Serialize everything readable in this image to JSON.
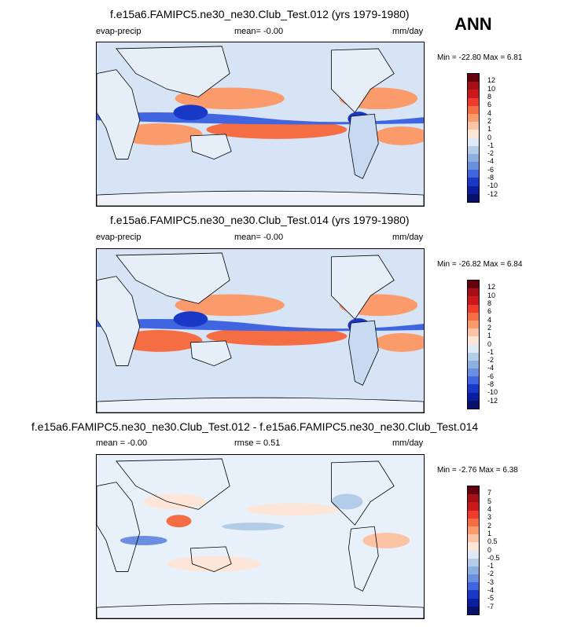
{
  "season": "ANN",
  "panels": [
    {
      "title": "f.e15a6.FAMIPC5.ne30_ne30.Club_Test.012 (yrs 1979-1980)",
      "left_label": "evap-precip",
      "center_label": "mean=  -0.00",
      "units": "mm/day",
      "minmax": "Min = -22.80 Max =   6.81",
      "colorbar_labels": [
        "12",
        "10",
        "8",
        "6",
        "4",
        "2",
        "1",
        "0",
        "-1",
        "-2",
        "-4",
        "-6",
        "-8",
        "-10",
        "-12"
      ]
    },
    {
      "title": "f.e15a6.FAMIPC5.ne30_ne30.Club_Test.014 (yrs 1979-1980)",
      "left_label": "evap-precip",
      "center_label": "mean=  -0.00",
      "units": "mm/day",
      "minmax": "Min = -26.82 Max =   6.84",
      "colorbar_labels": [
        "12",
        "10",
        "8",
        "6",
        "4",
        "2",
        "1",
        "0",
        "-1",
        "-2",
        "-4",
        "-6",
        "-8",
        "-10",
        "-12"
      ]
    },
    {
      "title": "f.e15a6.FAMIPC5.ne30_ne30.Club_Test.012 - f.e15a6.FAMIPC5.ne30_ne30.Club_Test.014",
      "left_label": "mean = -0.00",
      "center_label": "rmse =   0.51",
      "units": "mm/day",
      "minmax": "Min =  -2.76 Max =   6.38",
      "colorbar_labels": [
        "7",
        "5",
        "4",
        "3",
        "2",
        "1",
        "0.5",
        "0",
        "-0.5",
        "-1",
        "-2",
        "-3",
        "-4",
        "-5",
        "-7"
      ]
    }
  ],
  "colors": {
    "scale": [
      "#67000d",
      "#a50f15",
      "#cb181d",
      "#ef3b2c",
      "#f46d43",
      "#fb9a6a",
      "#fdc3a5",
      "#fde6d8",
      "#deebf7",
      "#b3cde9",
      "#8cb0e0",
      "#6a8ee0",
      "#3f66e0",
      "#1838c8",
      "#0a1ea0",
      "#08106e"
    ],
    "ocean_base": "#d6e4f5",
    "land_base": "#e6eef8"
  }
}
